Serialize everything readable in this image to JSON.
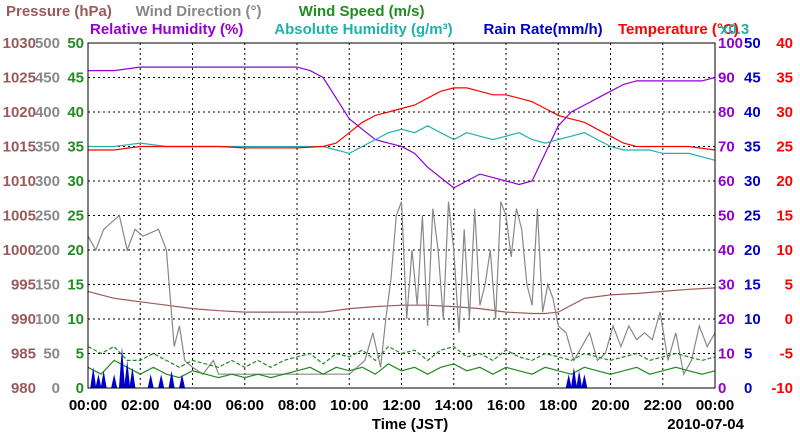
{
  "chart_data": {
    "type": "line",
    "legend": {
      "row1": [
        {
          "text": "Pressure (hPa)",
          "color": "#9b5a5a"
        },
        {
          "text": "Wind Direction (°)",
          "color": "#888888"
        },
        {
          "text": "Wind Speed (m/s)",
          "color": "#228b22"
        }
      ],
      "row2": [
        {
          "text": "Relative Humidity (%)",
          "color": "#9400d3"
        },
        {
          "text": "Absolute Humidity (g/m³)",
          "color": "#20b2aa"
        },
        {
          "text": "Rain Rate(mm/h)",
          "color": "#0000cd"
        },
        {
          "text": "Temperature (°C)",
          "color": "#ff0000"
        }
      ]
    },
    "rain_multiplier_label": "x0.3",
    "xlabel": "Time (JST)",
    "date_label": "2010-07-04",
    "x_ticks": [
      "00:00",
      "02:00",
      "04:00",
      "06:00",
      "08:00",
      "10:00",
      "12:00",
      "14:00",
      "16:00",
      "18:00",
      "20:00",
      "22:00",
      "00:00"
    ],
    "xlim_hours": [
      0,
      24
    ],
    "axes": {
      "pressure": {
        "color": "#9b5a5a",
        "range": [
          980,
          1030
        ],
        "ticks": [
          "1030",
          "1025",
          "1020",
          "1015",
          "1010",
          "1005",
          "1000",
          "995",
          "990",
          "985",
          "980"
        ]
      },
      "wind_dir": {
        "color": "#888888",
        "range": [
          0,
          500
        ],
        "ticks": [
          "500",
          "450",
          "400",
          "350",
          "300",
          "250",
          "200",
          "150",
          "100",
          "50",
          "0"
        ]
      },
      "wind_speed": {
        "color": "#228b22",
        "range": [
          0,
          50
        ],
        "ticks": [
          "50",
          "45",
          "40",
          "35",
          "30",
          "25",
          "20",
          "15",
          "10",
          "5",
          "0"
        ]
      },
      "humidity": {
        "color": "#9400d3",
        "range": [
          0,
          100
        ],
        "ticks": [
          "100",
          "90",
          "80",
          "70",
          "60",
          "50",
          "40",
          "30",
          "20",
          "10",
          "0"
        ]
      },
      "abs_humidity": {
        "color": "#0000cd",
        "range": [
          0,
          50
        ],
        "ticks": [
          "50",
          "45",
          "40",
          "35",
          "30",
          "25",
          "20",
          "15",
          "10",
          "5",
          "0"
        ]
      },
      "temperature": {
        "color": "#ff0000",
        "range": [
          -10,
          40
        ],
        "ticks": [
          "40",
          "35",
          "30",
          "25",
          "20",
          "15",
          "10",
          "5",
          "0",
          "-5",
          "-10"
        ]
      }
    },
    "series": [
      {
        "name": "Pressure (hPa)",
        "axis": "pressure",
        "color": "#9b5a5a",
        "x": [
          0,
          1,
          2,
          3,
          4,
          5,
          6,
          7,
          8,
          9,
          10,
          11,
          12,
          13,
          14,
          15,
          16,
          17,
          17.5,
          18,
          19,
          20,
          21,
          22,
          23,
          24
        ],
        "y": [
          994,
          993,
          992.5,
          992,
          991.5,
          991.2,
          991,
          991,
          991,
          991,
          991.5,
          991.8,
          992,
          992,
          991.8,
          991.5,
          991,
          990.8,
          990.8,
          991,
          993,
          993.5,
          993.7,
          994,
          994.3,
          994.5
        ]
      },
      {
        "name": "Wind Direction (°)",
        "axis": "wind_dir",
        "color": "#888888",
        "x": [
          0,
          0.3,
          0.6,
          0.9,
          1.2,
          1.5,
          1.8,
          2.1,
          2.4,
          2.7,
          3.0,
          3.3,
          3.5,
          3.7,
          4.0,
          4.4,
          4.8,
          5.0,
          6.0,
          7.0,
          8.0,
          8.5,
          9.0,
          9.5,
          10.0,
          10.3,
          10.6,
          10.9,
          11.2,
          11.4,
          11.6,
          11.8,
          12.0,
          12.2,
          12.4,
          12.6,
          12.8,
          13.0,
          13.2,
          13.4,
          13.6,
          13.8,
          14.0,
          14.2,
          14.4,
          14.6,
          14.8,
          15.0,
          15.2,
          15.4,
          15.6,
          15.8,
          16.0,
          16.2,
          16.4,
          16.6,
          16.8,
          17.0,
          17.2,
          17.4,
          17.6,
          17.8,
          18.0,
          18.3,
          18.6,
          18.9,
          19.2,
          19.5,
          19.8,
          20.1,
          20.4,
          20.7,
          21.0,
          21.3,
          21.6,
          21.9,
          22.2,
          22.5,
          22.8,
          23.1,
          23.4,
          23.7,
          24.0
        ],
        "y": [
          220,
          200,
          230,
          240,
          250,
          200,
          230,
          220,
          225,
          230,
          200,
          60,
          90,
          40,
          30,
          20,
          40,
          20,
          20,
          20,
          20,
          20,
          20,
          20,
          20,
          30,
          40,
          80,
          30,
          100,
          160,
          250,
          270,
          100,
          200,
          120,
          250,
          90,
          260,
          200,
          100,
          270,
          200,
          80,
          230,
          100,
          260,
          120,
          150,
          200,
          100,
          270,
          250,
          190,
          260,
          230,
          150,
          120,
          260,
          110,
          150,
          130,
          90,
          80,
          40,
          60,
          80,
          40,
          50,
          90,
          60,
          90,
          70,
          80,
          70,
          110,
          40,
          80,
          20,
          40,
          90,
          60,
          80
        ]
      },
      {
        "name": "Wind Speed (m/s)",
        "axis": "wind_speed",
        "color": "#228b22",
        "x": [
          0,
          0.5,
          1,
          1.5,
          2,
          2.5,
          3,
          3.5,
          4,
          4.5,
          5,
          5.5,
          6,
          6.5,
          7,
          7.5,
          8,
          8.5,
          9,
          9.5,
          10,
          10.5,
          11,
          11.5,
          12,
          12.5,
          13,
          13.5,
          14,
          14.5,
          15,
          15.5,
          16,
          16.5,
          17,
          17.5,
          18,
          18.5,
          19,
          19.5,
          20,
          20.5,
          21,
          21.5,
          22,
          22.5,
          23,
          23.5,
          24
        ],
        "y": [
          3,
          2,
          4,
          3,
          2,
          3,
          2,
          1.5,
          2.5,
          2,
          1.5,
          2,
          1.5,
          2,
          1.5,
          2,
          2.5,
          3,
          2,
          3,
          2.5,
          3,
          2,
          3.5,
          2.5,
          3,
          2,
          3,
          3.5,
          2.5,
          3,
          2,
          3,
          2.5,
          2,
          3,
          2.5,
          2,
          3,
          2.5,
          2,
          2.5,
          3,
          2,
          2.5,
          3,
          2.5,
          2,
          2.5
        ]
      },
      {
        "name": "Wind Speed max",
        "axis": "wind_speed",
        "color": "#228b22",
        "dashed": true,
        "x": [
          0,
          0.5,
          1,
          1.5,
          2,
          2.5,
          3,
          3.5,
          4,
          4.5,
          5,
          5.5,
          6,
          6.5,
          7,
          7.5,
          8,
          8.5,
          9,
          9.5,
          10,
          10.5,
          11,
          11.5,
          12,
          12.5,
          13,
          13.5,
          14,
          14.5,
          15,
          15.5,
          16,
          16.5,
          17,
          17.5,
          18,
          18.5,
          19,
          19.5,
          20,
          20.5,
          21,
          21.5,
          22,
          22.5,
          23,
          23.5,
          24
        ],
        "y": [
          6,
          5,
          6,
          4,
          4,
          5,
          4,
          3,
          4,
          3.5,
          3,
          4,
          3,
          4,
          3,
          4,
          4.5,
          5,
          3.5,
          5,
          4.5,
          5.5,
          4,
          6,
          5,
          5.5,
          4,
          5.5,
          6,
          4.5,
          5,
          4,
          5.5,
          4.5,
          4,
          5,
          4.5,
          4,
          5,
          4.5,
          4,
          4.5,
          5,
          4,
          4.5,
          5,
          4.5,
          4,
          4.5
        ]
      },
      {
        "name": "Relative Humidity (%)",
        "axis": "humidity",
        "color": "#9400d3",
        "x": [
          0,
          1,
          2,
          3,
          4,
          5,
          6,
          7,
          8,
          8.5,
          9,
          9.5,
          10,
          10.5,
          11,
          11.5,
          12,
          12.5,
          13,
          13.5,
          14,
          14.5,
          15,
          15.5,
          16,
          16.5,
          17,
          17.5,
          18,
          18.5,
          19,
          19.5,
          20,
          20.5,
          21,
          21.5,
          22,
          22.5,
          23,
          23.5,
          24
        ],
        "y": [
          92,
          92,
          93,
          93,
          93,
          93,
          93,
          93,
          93,
          92,
          90,
          84,
          78,
          75,
          72,
          71,
          70,
          68,
          64,
          61,
          58,
          60,
          62,
          61,
          60,
          59,
          60,
          68,
          76,
          80,
          82,
          84,
          86,
          88,
          89,
          89,
          89,
          89,
          89,
          89,
          90
        ]
      },
      {
        "name": "Absolute Humidity (g/m³)",
        "axis": "abs_humidity",
        "color": "#20b2aa",
        "x": [
          0,
          1,
          2,
          3,
          4,
          5,
          6,
          7,
          8,
          9,
          10,
          10.5,
          11,
          11.5,
          12,
          12.5,
          13,
          13.5,
          14,
          14.5,
          15,
          15.5,
          16,
          16.5,
          17,
          17.5,
          18,
          18.5,
          19,
          19.5,
          20,
          20.5,
          21,
          21.5,
          22,
          22.5,
          23,
          23.5,
          24
        ],
        "y": [
          35,
          35,
          35.5,
          35,
          35,
          35,
          35,
          35,
          35,
          35,
          34,
          35,
          36,
          37,
          37.5,
          37,
          38,
          37,
          36,
          37,
          36.5,
          36,
          36.5,
          37,
          36,
          35.5,
          36,
          36.5,
          37,
          36,
          35,
          34.5,
          34.5,
          34.5,
          34,
          34,
          34,
          33.5,
          33
        ]
      },
      {
        "name": "Temperature (°C)",
        "axis": "temperature",
        "color": "#ff0000",
        "x": [
          0,
          1,
          2,
          3,
          4,
          5,
          6,
          7,
          8,
          9,
          9.5,
          10,
          10.5,
          11,
          11.5,
          12,
          12.5,
          13,
          13.5,
          14,
          14.5,
          15,
          15.5,
          16,
          16.5,
          17,
          17.5,
          18,
          18.5,
          19,
          19.5,
          20,
          20.5,
          21,
          22,
          23,
          24
        ],
        "y": [
          24.5,
          24.5,
          25,
          25,
          25,
          25,
          24.8,
          24.8,
          24.8,
          25,
          25.5,
          27,
          28.5,
          29.5,
          30,
          30.5,
          31,
          32,
          33,
          33.5,
          33.5,
          33,
          32.5,
          32.5,
          32,
          31.5,
          30.5,
          29.5,
          29,
          28.5,
          27.5,
          26.5,
          25.5,
          25,
          25,
          25,
          24.5
        ]
      },
      {
        "name": "Rain Rate(mm/h)",
        "axis": "abs_humidity",
        "color": "#0000cd",
        "type": "spikes",
        "x": [
          0.2,
          0.4,
          0.6,
          1.0,
          1.3,
          1.5,
          1.7,
          2.4,
          2.8,
          3.2,
          3.6,
          18.4,
          18.6,
          18.8,
          19.0
        ],
        "y": [
          3,
          2,
          2.5,
          2,
          6,
          4,
          3,
          2,
          2,
          2.5,
          2,
          2,
          3,
          2.5,
          2
        ]
      }
    ]
  }
}
